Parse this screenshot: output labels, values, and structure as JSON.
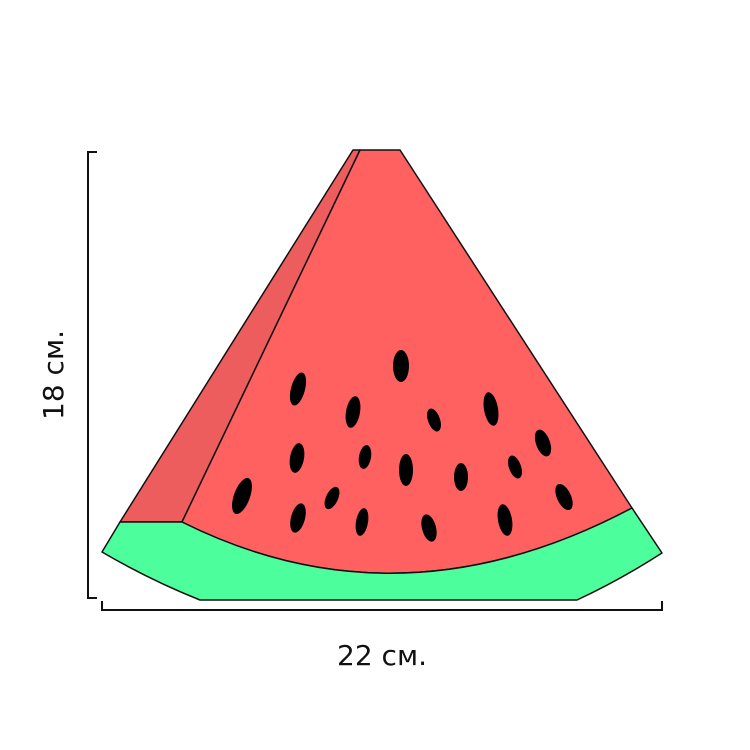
{
  "dimensions": {
    "height": "18 см.",
    "width": "22 см."
  }
}
